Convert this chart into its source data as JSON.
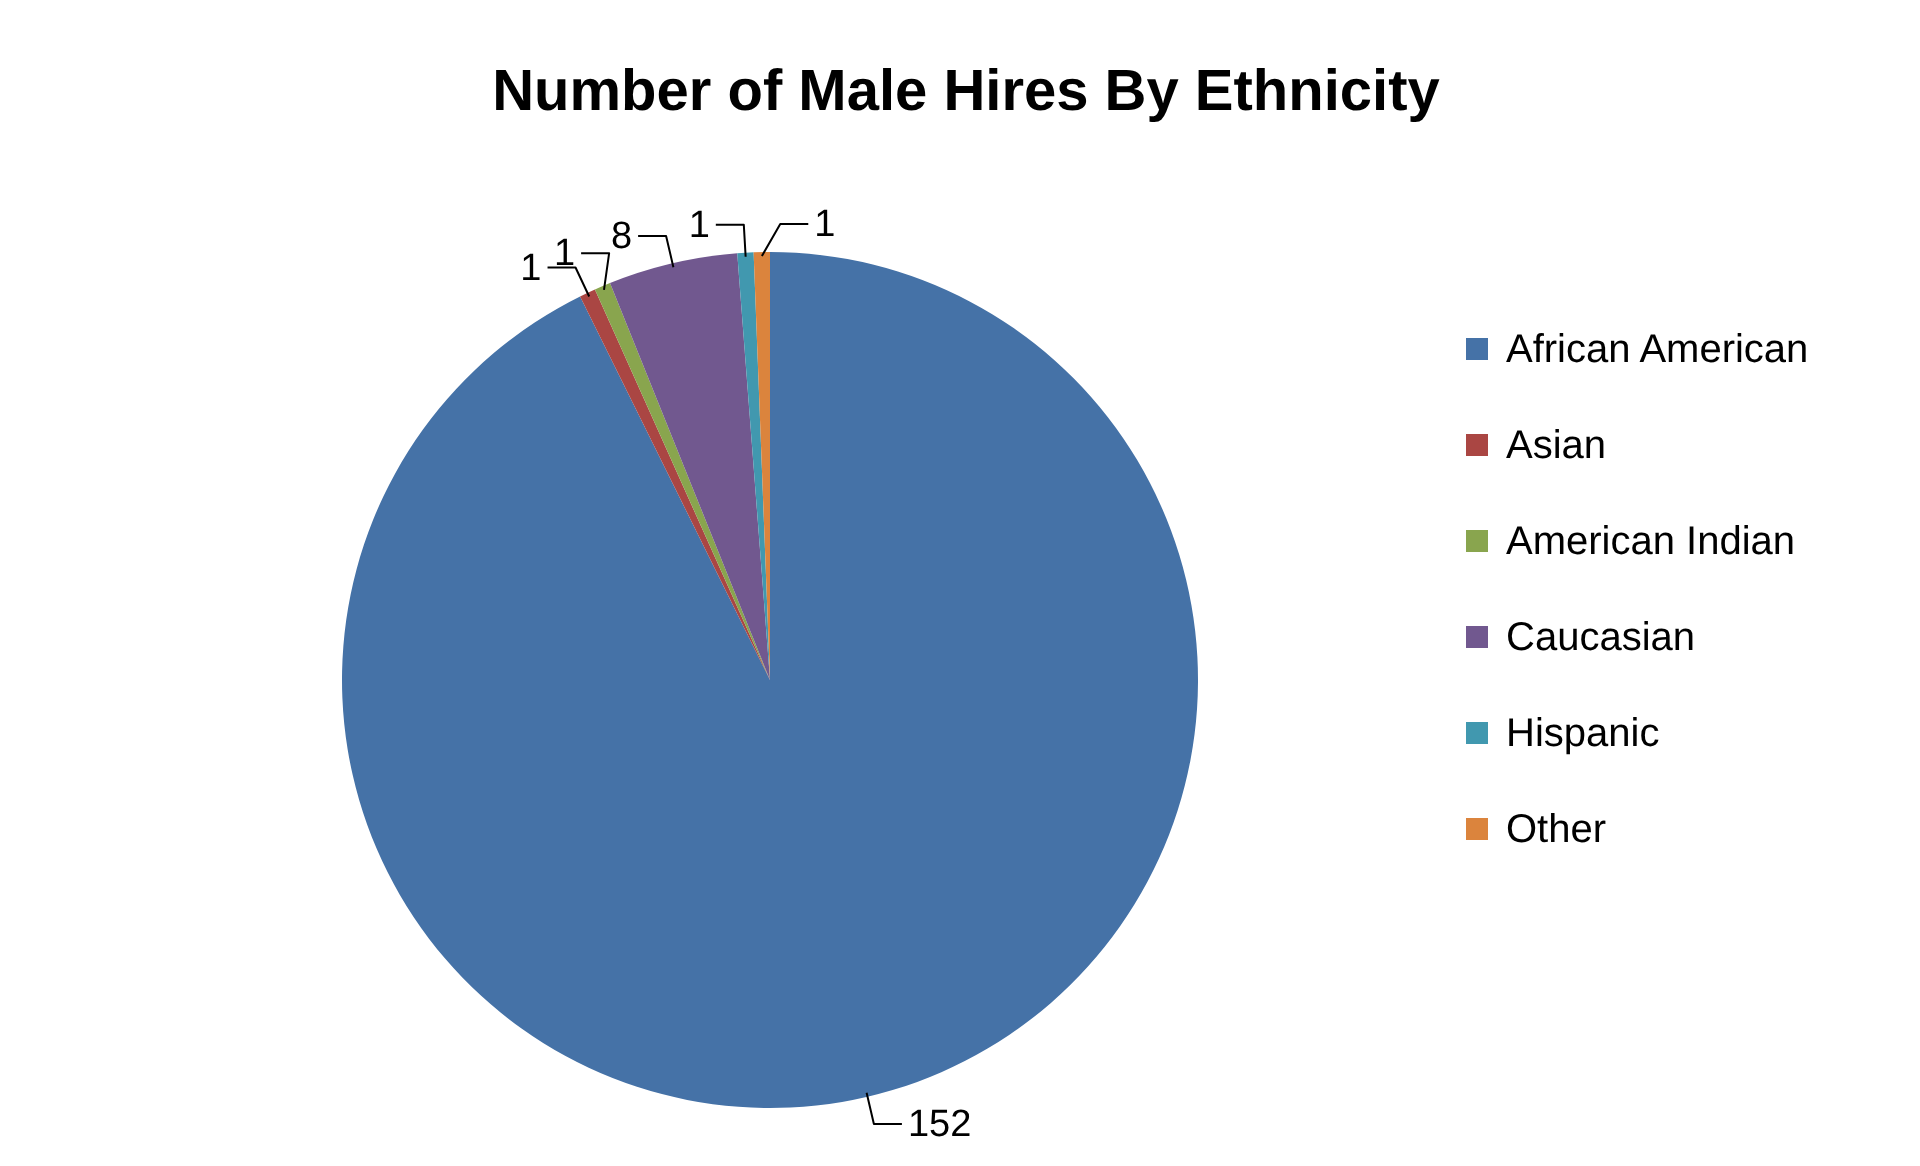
{
  "chart_data": {
    "type": "pie",
    "title": "Number of Male Hires By Ethnicity",
    "categories": [
      "African American",
      "Asian",
      "American Indian",
      "Caucasian",
      "Hispanic",
      "Other"
    ],
    "values": [
      152,
      1,
      1,
      8,
      1,
      1
    ],
    "colors": [
      "#4572a7",
      "#aa4643",
      "#89a54e",
      "#71588f",
      "#4198af",
      "#db843d"
    ],
    "data_labels": true,
    "legend": "right"
  }
}
